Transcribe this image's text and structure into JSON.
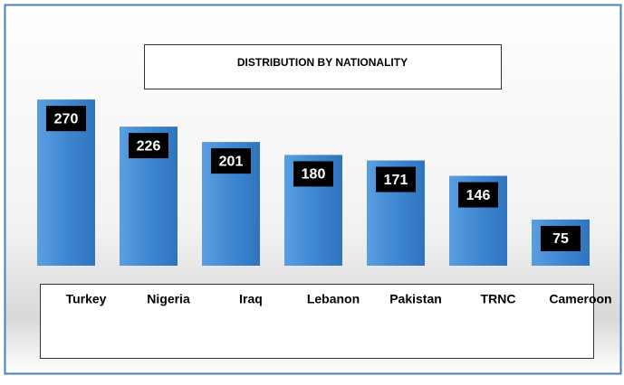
{
  "chart_data": {
    "type": "bar",
    "title": "DISTRIBUTION BY NATIONALITY",
    "categories": [
      "Turkey",
      "Nigeria",
      "Iraq",
      "Lebanon",
      "Pakistan",
      "TRNC",
      "Cameroon"
    ],
    "values": [
      270,
      226,
      201,
      180,
      171,
      146,
      75
    ],
    "color": "#3f87d2"
  }
}
